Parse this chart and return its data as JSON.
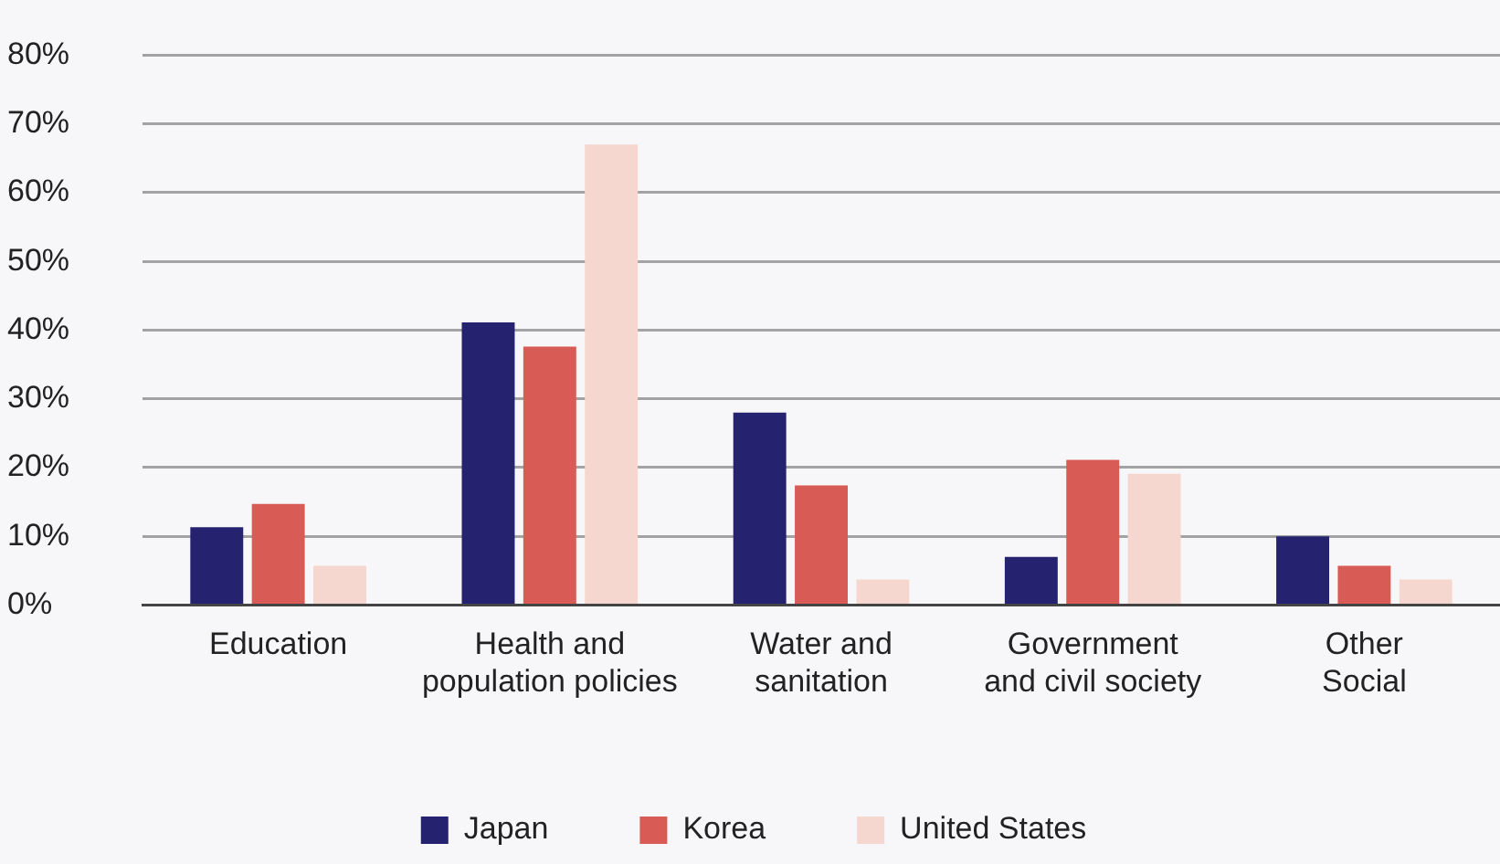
{
  "chart_data": {
    "type": "bar",
    "categories": [
      "Education",
      "Health and\npopulation policies",
      "Water and\nsanitation",
      "Government\nand civil society",
      "Other\nSocial"
    ],
    "series": [
      {
        "name": "Japan",
        "color": "#25226f",
        "values": [
          11.3,
          41.1,
          28.0,
          7.0,
          10.0
        ]
      },
      {
        "name": "Korea",
        "color": "#d95b55",
        "values": [
          14.7,
          37.6,
          17.4,
          21.1,
          5.7
        ]
      },
      {
        "name": "United States",
        "color": "#f6d7d0",
        "values": [
          5.7,
          67.0,
          3.7,
          19.1,
          3.7
        ]
      }
    ],
    "ylim": [
      0,
      80
    ],
    "yticks": [
      {
        "value": 0,
        "label": "0%"
      },
      {
        "value": 10,
        "label": "10%"
      },
      {
        "value": 20,
        "label": "20%"
      },
      {
        "value": 30,
        "label": "30%"
      },
      {
        "value": 40,
        "label": "40%"
      },
      {
        "value": 50,
        "label": "50%"
      },
      {
        "value": 60,
        "label": "60%"
      },
      {
        "value": 70,
        "label": "70%"
      },
      {
        "value": 80,
        "label": "80%"
      }
    ],
    "grid": "y",
    "legend": "bottom"
  }
}
